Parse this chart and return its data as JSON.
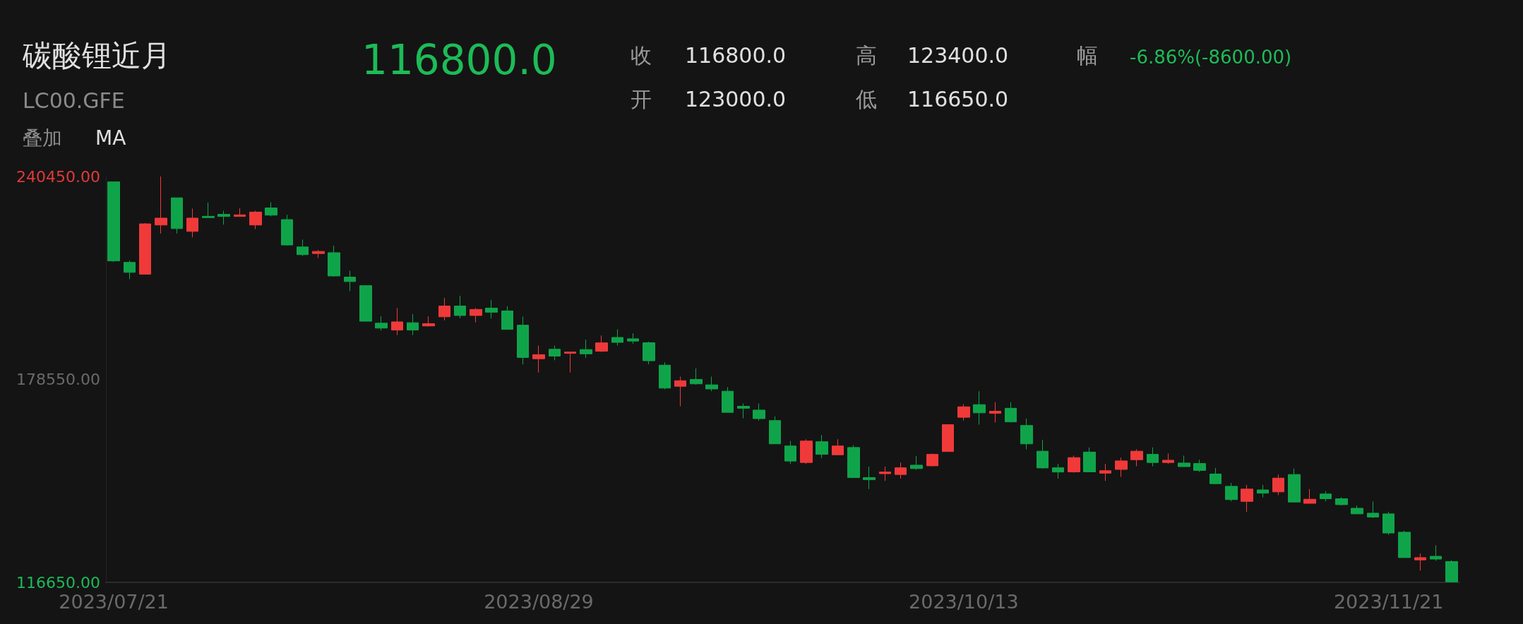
{
  "chart_data": {
    "type": "candlestick",
    "title": "碳酸锂近月",
    "subtitle": "LC00.GFE",
    "annotations": [
      "116800.0",
      "收",
      "116800.0",
      "高",
      "123400.0",
      "幅",
      "-6.86%(-8600.00)",
      "开",
      "123000.0",
      "低",
      "116650.0",
      "叠加",
      "MA"
    ],
    "categories": [
      "2023/07/21",
      null,
      null,
      null,
      null,
      null,
      null,
      null,
      null,
      null,
      null,
      null,
      null,
      null,
      null,
      null,
      null,
      null,
      null,
      null,
      null,
      null,
      null,
      null,
      null,
      null,
      null,
      "2023/08/29",
      null,
      null,
      null,
      null,
      null,
      null,
      null,
      null,
      null,
      null,
      null,
      null,
      null,
      null,
      null,
      null,
      null,
      null,
      null,
      null,
      null,
      null,
      null,
      null,
      null,
      null,
      "2023/10/13",
      null,
      null,
      null,
      null,
      null,
      null,
      null,
      null,
      null,
      null,
      null,
      null,
      null,
      null,
      null,
      null,
      null,
      null,
      null,
      null,
      null,
      null,
      null,
      null,
      null,
      null,
      "2023/11/21",
      null,
      null,
      null,
      null
    ],
    "ohlc": [
      [
        238800,
        238800,
        214350,
        214700
      ],
      [
        214250,
        214850,
        209150,
        211200
      ],
      [
        210650,
        226250,
        210650,
        226000
      ],
      [
        225650,
        240450,
        223050,
        227750
      ],
      [
        233950,
        233950,
        223050,
        224550
      ],
      [
        223700,
        230650,
        221900,
        227750
      ],
      [
        228300,
        232500,
        227900,
        227900
      ],
      [
        228900,
        230000,
        225750,
        228250
      ],
      [
        228250,
        230750,
        228250,
        228750
      ],
      [
        225650,
        230000,
        224400,
        229600
      ],
      [
        230850,
        232600,
        228300,
        228650
      ],
      [
        227300,
        228750,
        219350,
        219550
      ],
      [
        218950,
        221200,
        216200,
        216600
      ],
      [
        216950,
        218050,
        215550,
        217600
      ],
      [
        217200,
        219350,
        209900,
        210100
      ],
      [
        209750,
        211700,
        205500,
        208400
      ],
      [
        207150,
        207150,
        196300,
        196300
      ],
      [
        195700,
        197800,
        193450,
        194200
      ],
      [
        193600,
        200300,
        192100,
        196100
      ],
      [
        195850,
        198450,
        192100,
        193600
      ],
      [
        194850,
        197800,
        194700,
        195550
      ],
      [
        197650,
        203400,
        196550,
        200950
      ],
      [
        200950,
        204050,
        197200,
        198050
      ],
      [
        198050,
        200300,
        195950,
        199900
      ],
      [
        200300,
        202800,
        197150,
        199050
      ],
      [
        199450,
        200900,
        193800,
        193800
      ],
      [
        195100,
        197700,
        183150,
        185250
      ],
      [
        184850,
        188850,
        180650,
        186100
      ],
      [
        187750,
        188850,
        184400,
        185650
      ],
      [
        186500,
        186900,
        180650,
        186900
      ],
      [
        187650,
        190700,
        185100,
        186350
      ],
      [
        187150,
        191950,
        186900,
        189700
      ],
      [
        191350,
        193850,
        188850,
        189850
      ],
      [
        190950,
        192600,
        189450,
        190250
      ],
      [
        189750,
        190100,
        183150,
        184250
      ],
      [
        182900,
        183750,
        175550,
        175900
      ],
      [
        176450,
        179400,
        170350,
        178150
      ],
      [
        178550,
        181900,
        176900,
        177200
      ],
      [
        176900,
        179400,
        174950,
        175650
      ],
      [
        174950,
        176200,
        168500,
        168500
      ],
      [
        170350,
        171200,
        166700,
        169750
      ],
      [
        169200,
        171200,
        166000,
        166600
      ],
      [
        166000,
        167250,
        158900,
        158900
      ],
      [
        158250,
        159750,
        152800,
        153650
      ],
      [
        153200,
        160300,
        152800,
        159750
      ],
      [
        159550,
        161600,
        154550,
        155700
      ],
      [
        155550,
        160300,
        155550,
        158250
      ],
      [
        157800,
        158500,
        148600,
        148600
      ],
      [
        148600,
        151950,
        145100,
        147950
      ],
      [
        149800,
        151950,
        147600,
        150300
      ],
      [
        149550,
        153200,
        148300,
        151600
      ],
      [
        152400,
        155150,
        150950,
        151350
      ],
      [
        152200,
        155950,
        152050,
        155700
      ],
      [
        156550,
        164750,
        156550,
        164750
      ],
      [
        167000,
        171050,
        166000,
        170200
      ],
      [
        170850,
        174950,
        164750,
        168350
      ],
      [
        168200,
        171600,
        165400,
        168850
      ],
      [
        169750,
        171600,
        165400,
        165600
      ],
      [
        164500,
        166600,
        157250,
        158900
      ],
      [
        156650,
        160150,
        151350,
        151550
      ],
      [
        151600,
        152800,
        148300,
        150300
      ],
      [
        150350,
        155300,
        150100,
        154700
      ],
      [
        156400,
        157800,
        150350,
        150350
      ],
      [
        149950,
        152800,
        147600,
        150700
      ],
      [
        151100,
        154700,
        148850,
        153700
      ],
      [
        154050,
        157250,
        152050,
        156650
      ],
      [
        155700,
        157800,
        152050,
        153200
      ],
      [
        153200,
        155950,
        152800,
        153900
      ],
      [
        153050,
        155300,
        151950,
        151950
      ],
      [
        152900,
        154050,
        150300,
        150800
      ],
      [
        149700,
        151550,
        146600,
        146750
      ],
      [
        145950,
        147000,
        141350,
        141900
      ],
      [
        141350,
        146350,
        138150,
        145100
      ],
      [
        144850,
        146350,
        142600,
        143850
      ],
      [
        144250,
        149550,
        143250,
        148450
      ],
      [
        149550,
        151350,
        141150,
        141150
      ],
      [
        140750,
        145100,
        140750,
        142000
      ],
      [
        143600,
        144450,
        141350,
        142150
      ],
      [
        142150,
        142600,
        140100,
        140350
      ],
      [
        139250,
        140100,
        137550,
        137550
      ],
      [
        137750,
        141350,
        136300,
        136550
      ],
      [
        137550,
        138150,
        131150,
        131700
      ],
      [
        131950,
        132400,
        124200,
        124200
      ],
      [
        123500,
        125450,
        120250,
        124200
      ],
      [
        124600,
        127950,
        123200,
        123750
      ],
      [
        123000,
        123400,
        116650,
        116800
      ]
    ],
    "colors": [
      "#10a44a",
      "#10a44a",
      "#f03a3a",
      "#f03a3a",
      "#10a44a",
      "#f03a3a",
      "#10a44a",
      "#10a44a",
      "#f03a3a",
      "#f03a3a",
      "#10a44a",
      "#10a44a",
      "#10a44a",
      "#f03a3a",
      "#10a44a",
      "#10a44a",
      "#10a44a",
      "#10a44a",
      "#f03a3a",
      "#10a44a",
      "#f03a3a",
      "#f03a3a",
      "#10a44a",
      "#f03a3a",
      "#10a44a",
      "#10a44a",
      "#10a44a",
      "#f03a3a",
      "#10a44a",
      "#f03a3a",
      "#10a44a",
      "#f03a3a",
      "#10a44a",
      "#10a44a",
      "#10a44a",
      "#10a44a",
      "#f03a3a",
      "#10a44a",
      "#10a44a",
      "#10a44a",
      "#10a44a",
      "#10a44a",
      "#10a44a",
      "#10a44a",
      "#f03a3a",
      "#10a44a",
      "#f03a3a",
      "#10a44a",
      "#10a44a",
      "#f03a3a",
      "#f03a3a",
      "#10a44a",
      "#f03a3a",
      "#f03a3a",
      "#f03a3a",
      "#10a44a",
      "#f03a3a",
      "#10a44a",
      "#10a44a",
      "#10a44a",
      "#10a44a",
      "#f03a3a",
      "#10a44a",
      "#f03a3a",
      "#f03a3a",
      "#f03a3a",
      "#10a44a",
      "#f03a3a",
      "#10a44a",
      "#10a44a",
      "#10a44a",
      "#10a44a",
      "#f03a3a",
      "#10a44a",
      "#f03a3a",
      "#10a44a",
      "#f03a3a",
      "#10a44a",
      "#10a44a",
      "#10a44a",
      "#10a44a",
      "#10a44a",
      "#10a44a",
      "#f03a3a",
      "#10a44a",
      "#10a44a"
    ],
    "ylim": [
      116650,
      240450
    ],
    "yticks": [
      {
        "value": 116650,
        "label": "116650.00"
      },
      {
        "value": 178550,
        "label": "178550.00"
      },
      {
        "value": 240450,
        "label": "240450.00"
      }
    ],
    "grid": false
  }
}
